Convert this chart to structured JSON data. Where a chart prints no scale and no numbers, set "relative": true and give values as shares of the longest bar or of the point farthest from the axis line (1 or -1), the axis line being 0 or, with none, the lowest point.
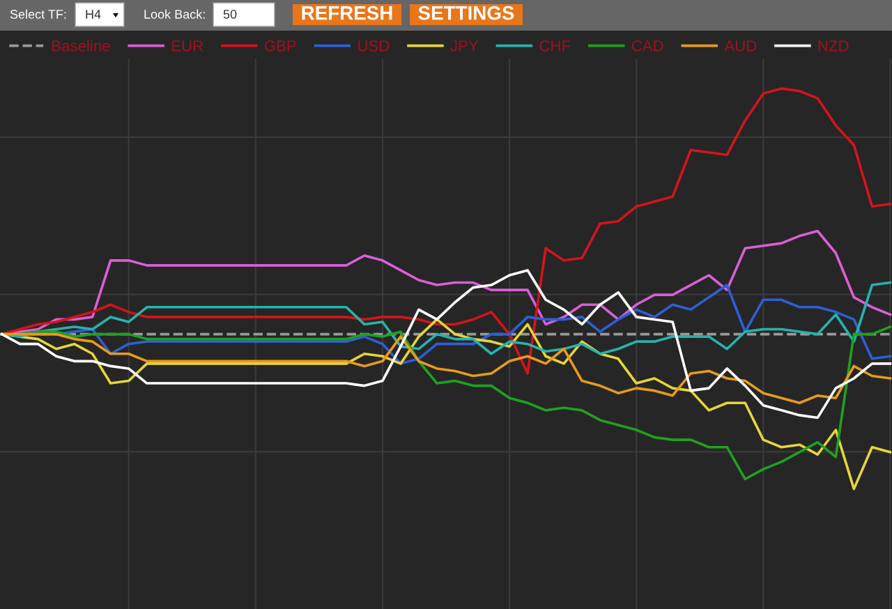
{
  "chart_data": {
    "type": "line",
    "relative": true,
    "grid": true,
    "legend": "top left",
    "marker": "none",
    "line_style": "solid",
    "annotations": [
      "Select TF:",
      "H4",
      "Look Back:",
      "50",
      "REFRESH",
      "SETTINGS"
    ],
    "ref_lines": [
      {
        "axis": "y",
        "value": 0,
        "label": "Baseline",
        "color": "#9a9a9a",
        "line_style": "dashed"
      }
    ],
    "categories": [
      null,
      null,
      null,
      null,
      null,
      null,
      null,
      null,
      null,
      null,
      null,
      null,
      null,
      null,
      null,
      null,
      null,
      null,
      null,
      null,
      null,
      null,
      null,
      null,
      null,
      null,
      null,
      null,
      null,
      null,
      null,
      null,
      null,
      null,
      null,
      null,
      null,
      null,
      null,
      null,
      null,
      null,
      null,
      null,
      null,
      null,
      null,
      null,
      null,
      null
    ],
    "series": [
      {
        "name": "EUR",
        "color": "#d95fd6",
        "values": [
          0,
          0.01,
          0.02,
          0.06,
          0.06,
          0.07,
          0.3,
          0.3,
          0.28,
          0.28,
          0.28,
          0.28,
          0.28,
          0.28,
          0.28,
          0.28,
          0.28,
          0.28,
          0.28,
          0.28,
          0.32,
          0.3,
          0.26,
          0.22,
          0.2,
          0.21,
          0.21,
          0.18,
          0.18,
          0.18,
          0.04,
          0.07,
          0.12,
          0.12,
          0.06,
          0.12,
          0.16,
          0.16,
          0.2,
          0.24,
          0.18,
          0.35,
          0.36,
          0.37,
          0.4,
          0.42,
          0.33,
          0.15,
          0.11,
          0.08
        ]
      },
      {
        "name": "GBP",
        "color": "#d4141c",
        "values": [
          0,
          0.02,
          0.04,
          0.05,
          0.07,
          0.09,
          0.12,
          0.09,
          0.07,
          0.07,
          0.07,
          0.07,
          0.07,
          0.07,
          0.07,
          0.07,
          0.07,
          0.07,
          0.07,
          0.07,
          0.06,
          0.07,
          0.07,
          0.06,
          0.04,
          0.04,
          0.06,
          0.09,
          0,
          -0.16,
          0.35,
          0.3,
          0.31,
          0.45,
          0.46,
          0.52,
          0.54,
          0.56,
          0.75,
          0.74,
          0.73,
          0.87,
          0.98,
          1,
          0.99,
          0.96,
          0.85,
          0.77,
          0.52,
          0.53
        ]
      },
      {
        "name": "USD",
        "color": "#2f5fd6",
        "values": [
          null,
          null,
          0,
          0,
          0.01,
          0.02,
          -0.08,
          -0.04,
          -0.03,
          -0.03,
          -0.03,
          -0.03,
          -0.03,
          -0.03,
          -0.03,
          -0.03,
          -0.03,
          -0.03,
          -0.03,
          -0.03,
          -0.01,
          -0.04,
          -0.12,
          -0.1,
          -0.04,
          -0.04,
          -0.04,
          0,
          0,
          0.07,
          0.06,
          0.06,
          0.07,
          0.01,
          0.06,
          0.1,
          0.07,
          0.12,
          0.1,
          0.15,
          0.2,
          0.01,
          0.14,
          0.14,
          0.11,
          0.11,
          0.09,
          0.06,
          -0.1,
          -0.09
        ]
      },
      {
        "name": "JPY",
        "color": "#e6d53a",
        "values": [
          0,
          -0.01,
          -0.02,
          -0.06,
          -0.04,
          -0.08,
          -0.2,
          -0.19,
          -0.12,
          -0.12,
          -0.12,
          -0.12,
          -0.12,
          -0.12,
          -0.12,
          -0.12,
          -0.12,
          -0.12,
          -0.12,
          -0.12,
          -0.08,
          -0.09,
          -0.12,
          -0.01,
          0.06,
          0,
          -0.02,
          -0.03,
          -0.05,
          0.04,
          -0.09,
          -0.12,
          -0.03,
          -0.08,
          -0.1,
          -0.2,
          -0.18,
          -0.22,
          -0.23,
          -0.31,
          -0.28,
          -0.28,
          -0.43,
          -0.46,
          -0.45,
          -0.49,
          -0.39,
          -0.63,
          -0.46,
          -0.48
        ]
      },
      {
        "name": "CHF",
        "color": "#27b3ad",
        "values": [
          0,
          -0.01,
          0.01,
          0.02,
          0.03,
          0.02,
          0.07,
          0.05,
          0.11,
          0.11,
          0.11,
          0.11,
          0.11,
          0.11,
          0.11,
          0.11,
          0.11,
          0.11,
          0.11,
          0.11,
          0.04,
          0.05,
          -0.05,
          -0.06,
          0,
          -0.02,
          -0.02,
          -0.08,
          -0.03,
          -0.04,
          -0.07,
          -0.06,
          -0.04,
          -0.08,
          -0.06,
          -0.03,
          -0.03,
          -0.01,
          -0.01,
          -0.01,
          -0.06,
          0.01,
          0.02,
          0.02,
          0.01,
          0,
          0.08,
          -0.03,
          0.2,
          0.21
        ]
      },
      {
        "name": "CAD",
        "color": "#1fa11f",
        "values": [
          0,
          0,
          0.01,
          0.01,
          -0.01,
          0,
          0,
          0,
          -0.02,
          -0.02,
          -0.02,
          -0.02,
          -0.02,
          -0.02,
          -0.02,
          -0.02,
          -0.02,
          -0.02,
          -0.02,
          -0.02,
          0,
          -0.01,
          0.01,
          -0.11,
          -0.2,
          -0.19,
          -0.21,
          -0.21,
          -0.26,
          -0.28,
          -0.31,
          -0.3,
          -0.31,
          -0.35,
          -0.37,
          -0.39,
          -0.42,
          -0.43,
          -0.43,
          -0.46,
          -0.46,
          -0.59,
          -0.55,
          -0.52,
          -0.48,
          -0.44,
          -0.5,
          0,
          0,
          0.03
        ]
      },
      {
        "name": "AUD",
        "color": "#e89a1e",
        "values": [
          0,
          0,
          0,
          0,
          -0.02,
          -0.03,
          -0.08,
          -0.08,
          -0.11,
          -0.11,
          -0.11,
          -0.11,
          -0.11,
          -0.11,
          -0.11,
          -0.11,
          -0.11,
          -0.11,
          -0.11,
          -0.11,
          -0.13,
          -0.11,
          -0.01,
          -0.11,
          -0.14,
          -0.15,
          -0.17,
          -0.16,
          -0.11,
          -0.09,
          -0.12,
          -0.06,
          -0.19,
          -0.21,
          -0.24,
          -0.22,
          -0.23,
          -0.25,
          -0.16,
          -0.15,
          -0.18,
          -0.19,
          -0.24,
          -0.26,
          -0.28,
          -0.25,
          -0.26,
          -0.13,
          -0.17,
          -0.18
        ]
      },
      {
        "name": "NZD",
        "color": "#ffffff",
        "values": [
          0,
          -0.04,
          -0.04,
          -0.09,
          -0.11,
          -0.11,
          -0.13,
          -0.14,
          -0.2,
          -0.2,
          -0.2,
          -0.2,
          -0.2,
          -0.2,
          -0.2,
          -0.2,
          -0.2,
          -0.2,
          -0.2,
          -0.2,
          -0.21,
          -0.19,
          -0.05,
          0.1,
          0.06,
          0.13,
          0.19,
          0.2,
          0.24,
          0.26,
          0.14,
          0.1,
          0.04,
          0.12,
          0.17,
          0.07,
          0.06,
          0.05,
          -0.23,
          -0.22,
          -0.14,
          -0.21,
          -0.29,
          -0.31,
          -0.33,
          -0.34,
          -0.22,
          -0.18,
          -0.12,
          -0.12
        ]
      }
    ]
  }
}
